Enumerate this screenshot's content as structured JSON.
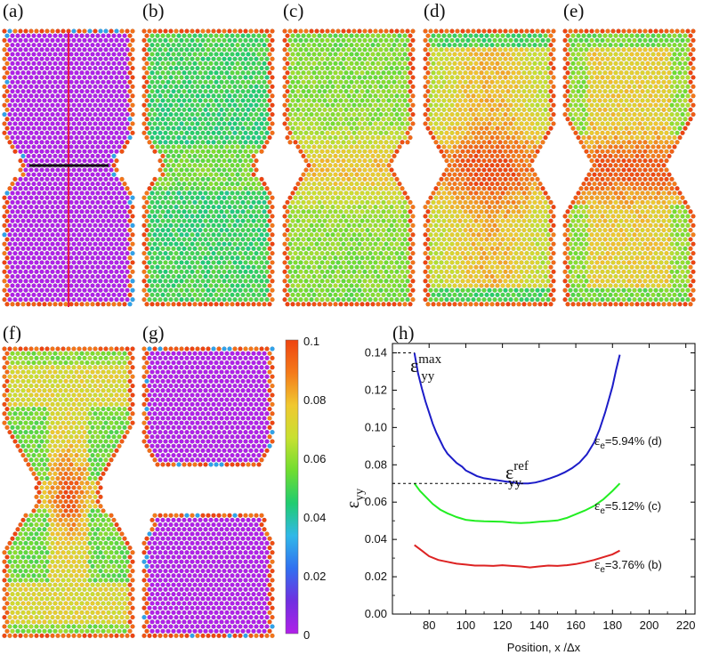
{
  "panels": [
    {
      "id": "a",
      "label": "(a)",
      "strain_field": "uniform-zero",
      "notch": true,
      "broken": false,
      "markers": true
    },
    {
      "id": "b",
      "label": "(b)",
      "strain_field": "low",
      "notch": true,
      "broken": false
    },
    {
      "id": "c",
      "label": "(c)",
      "strain_field": "medium",
      "notch": true,
      "broken": false
    },
    {
      "id": "d",
      "label": "(d)",
      "strain_field": "high",
      "notch": true,
      "broken": false
    },
    {
      "id": "e",
      "label": "(e)",
      "strain_field": "peak",
      "notch": true,
      "broken": false
    },
    {
      "id": "f",
      "label": "(f)",
      "strain_field": "post-necking",
      "notch": true,
      "broken": false
    },
    {
      "id": "g",
      "label": "(g)",
      "strain_field": "relaxed",
      "notch": true,
      "broken": true
    }
  ],
  "colorbar": {
    "min": 0,
    "max": 0.1,
    "ticks": [
      "0.1",
      "0.08",
      "0.06",
      "0.04",
      "0.02",
      "0"
    ],
    "colors": [
      "#ee4411",
      "#f47a1a",
      "#f0c830",
      "#c8e030",
      "#70dd30",
      "#20cc70",
      "#30b8e8",
      "#3070f0",
      "#7030e0",
      "#b020e8"
    ]
  },
  "chart_data": {
    "type": "line",
    "panel_label": "(h)",
    "xlabel": "Position, x /Δx",
    "ylabel": "εyy",
    "xlim": [
      60,
      225
    ],
    "ylim": [
      0.0,
      0.145
    ],
    "xticks": [
      80,
      100,
      120,
      140,
      160,
      180,
      200,
      220
    ],
    "yticks": [
      0.0,
      0.02,
      0.04,
      0.06,
      0.08,
      0.1,
      0.12,
      0.14
    ],
    "ytick_labels": [
      "0.00",
      "0.02",
      "0.04",
      "0.06",
      "0.08",
      "0.10",
      "0.12",
      "0.14"
    ],
    "series": [
      {
        "name": "εe=5.94% (d)",
        "eps_sub": "e",
        "value_text": "=5.94% (d)",
        "color": "#1c1cc8",
        "x": [
          72,
          74,
          76,
          78,
          80,
          82,
          84,
          86,
          88,
          90,
          92,
          95,
          98,
          100,
          103,
          106,
          110,
          114,
          118,
          122,
          126,
          130,
          134,
          138,
          142,
          146,
          150,
          154,
          158,
          162,
          166,
          170,
          173,
          176,
          178,
          180,
          182,
          184
        ],
        "y": [
          0.14,
          0.129,
          0.121,
          0.114,
          0.108,
          0.102,
          0.097,
          0.093,
          0.089,
          0.086,
          0.084,
          0.081,
          0.079,
          0.077,
          0.0755,
          0.074,
          0.0728,
          0.0722,
          0.0716,
          0.071,
          0.0705,
          0.07,
          0.07,
          0.0705,
          0.0715,
          0.0728,
          0.0742,
          0.076,
          0.0782,
          0.0812,
          0.0855,
          0.092,
          0.099,
          0.108,
          0.115,
          0.122,
          0.131,
          0.139
        ]
      },
      {
        "name": "εe=5.12% (c)",
        "eps_sub": "e",
        "value_text": "=5.12% (c)",
        "color": "#22ee22",
        "x": [
          72,
          75,
          78,
          82,
          86,
          90,
          95,
          100,
          105,
          110,
          115,
          120,
          125,
          130,
          135,
          140,
          145,
          150,
          155,
          160,
          165,
          170,
          175,
          180,
          184
        ],
        "y": [
          0.07,
          0.066,
          0.063,
          0.059,
          0.056,
          0.054,
          0.052,
          0.0505,
          0.05,
          0.0497,
          0.0496,
          0.0495,
          0.049,
          0.0488,
          0.049,
          0.0495,
          0.0498,
          0.0502,
          0.0515,
          0.0535,
          0.0555,
          0.058,
          0.0615,
          0.066,
          0.07
        ]
      },
      {
        "name": "εe=3.76% (b)",
        "eps_sub": "e",
        "value_text": "=3.76% (b)",
        "color": "#dd2222",
        "x": [
          72,
          76,
          80,
          85,
          90,
          95,
          100,
          105,
          110,
          115,
          120,
          125,
          130,
          135,
          140,
          145,
          150,
          155,
          160,
          165,
          170,
          175,
          180,
          184
        ],
        "y": [
          0.037,
          0.034,
          0.031,
          0.029,
          0.028,
          0.027,
          0.0265,
          0.026,
          0.026,
          0.0258,
          0.0262,
          0.0258,
          0.0255,
          0.025,
          0.0255,
          0.026,
          0.0258,
          0.0262,
          0.0268,
          0.0278,
          0.029,
          0.0305,
          0.032,
          0.034
        ]
      }
    ],
    "annotations": {
      "max_label": {
        "eps": "ε",
        "sup": "max",
        "sub": "yy",
        "value": 0.14
      },
      "ref_label": {
        "eps": "ε",
        "sup": "ref",
        "sub": "yy",
        "value": 0.07
      }
    }
  }
}
